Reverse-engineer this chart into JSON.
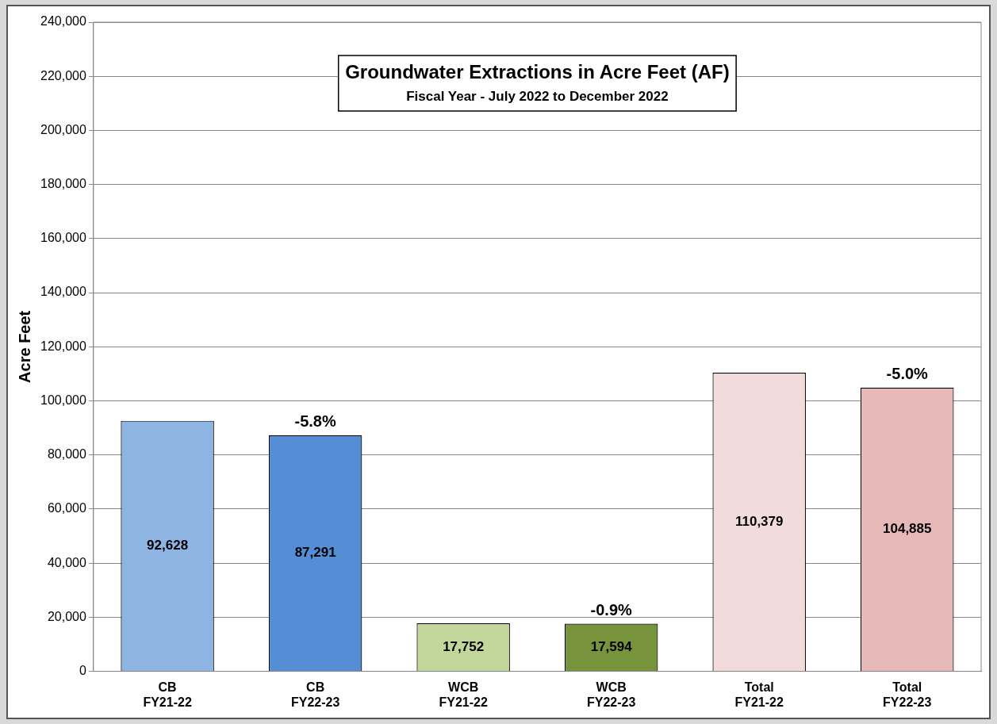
{
  "chart_data": {
    "type": "bar",
    "title": "Groundwater Extractions in Acre Feet (AF)",
    "subtitle": "Fiscal Year - July 2022 to December 2022",
    "ylabel": "Acre Feet",
    "categories": [
      "CB\nFY21-22",
      "CB\nFY22-23",
      "WCB\nFY21-22",
      "WCB\nFY22-23",
      "Total\nFY21-22",
      "Total\nFY22-23"
    ],
    "values": [
      92628,
      87291,
      17752,
      17594,
      110379,
      104885
    ],
    "colors": [
      "#8eb4e3",
      "#558ed5",
      "#c3d69b",
      "#77933c",
      "#f2dcdb",
      "#e6b9b8"
    ],
    "value_labels": [
      "92,628",
      "87,291",
      "17,752",
      "17,594",
      "110,379",
      "104,885"
    ],
    "annotations": [
      {
        "text": "-5.8%",
        "x": "CB\nFY22-23",
        "y": 87291
      },
      {
        "text": "-0.9%",
        "x": "WCB\nFY22-23",
        "y": 17594
      },
      {
        "text": "-5.0%",
        "x": "Total\nFY22-23",
        "y": 104885
      }
    ],
    "ylim": [
      0,
      240000
    ],
    "yticks": [
      {
        "value": 0,
        "label": "0"
      },
      {
        "value": 20000,
        "label": "20,000"
      },
      {
        "value": 40000,
        "label": "40,000"
      },
      {
        "value": 60000,
        "label": "60,000"
      },
      {
        "value": 80000,
        "label": "80,000"
      },
      {
        "value": 100000,
        "label": "100,000"
      },
      {
        "value": 120000,
        "label": "120,000"
      },
      {
        "value": 140000,
        "label": "140,000"
      },
      {
        "value": 160000,
        "label": "160,000"
      },
      {
        "value": 180000,
        "label": "180,000"
      },
      {
        "value": 200000,
        "label": "200,000"
      },
      {
        "value": 220000,
        "label": "220,000"
      },
      {
        "value": 240000,
        "label": "240,000"
      }
    ],
    "grid": "y"
  }
}
